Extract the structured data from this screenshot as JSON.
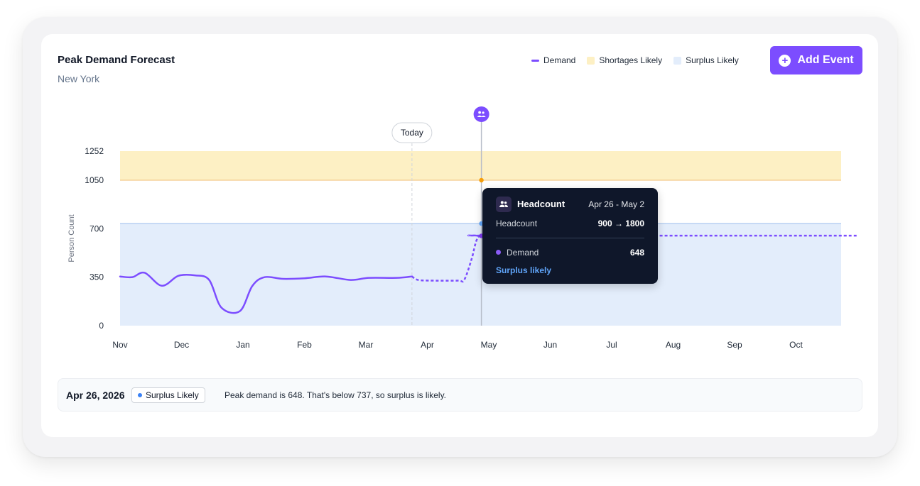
{
  "header": {
    "title": "Peak Demand Forecast",
    "subtitle": "New York"
  },
  "legend": [
    {
      "label": "Demand",
      "color": "#7c4dff",
      "kind": "line"
    },
    {
      "label": "Shortages Likely",
      "color": "#fdf0c4",
      "kind": "box"
    },
    {
      "label": "Surplus Likely",
      "color": "#e3edfb",
      "kind": "box"
    }
  ],
  "actions": {
    "add_event_label": "Add Event",
    "add_event_icon": "plus-circle-icon"
  },
  "chart_data": {
    "type": "line",
    "ylabel": "Person Count",
    "y_ticks": [
      0,
      350,
      700,
      1050,
      1252
    ],
    "x_ticks": [
      "Nov",
      "Dec",
      "Jan",
      "Feb",
      "Mar",
      "Apr",
      "May",
      "Jun",
      "Jul",
      "Aug",
      "Sep",
      "Oct"
    ],
    "today_label": "Today",
    "bands": [
      {
        "name": "Shortages Likely",
        "from": 1050,
        "to": 1252,
        "color": "#fdf0c4"
      },
      {
        "name": "Surplus Likely",
        "from": 0,
        "to": 737,
        "color": "#e3edfb"
      }
    ],
    "series": [
      {
        "name": "Demand",
        "color": "#7c4dff",
        "actual": [
          [
            0.0,
            355
          ],
          [
            0.2,
            350
          ],
          [
            0.4,
            382
          ],
          [
            0.68,
            288
          ],
          [
            0.95,
            360
          ],
          [
            1.22,
            363
          ],
          [
            1.45,
            330
          ],
          [
            1.65,
            130
          ],
          [
            1.95,
            105
          ],
          [
            2.15,
            285
          ],
          [
            2.35,
            350
          ],
          [
            2.65,
            338
          ],
          [
            3.0,
            342
          ],
          [
            3.35,
            355
          ],
          [
            3.75,
            330
          ],
          [
            4.05,
            345
          ],
          [
            4.5,
            345
          ],
          [
            4.75,
            355
          ]
        ],
        "forecast": [
          [
            4.75,
            355
          ],
          [
            4.85,
            330
          ],
          [
            5.1,
            325
          ],
          [
            5.5,
            325
          ],
          [
            5.6,
            330
          ],
          [
            5.72,
            480
          ],
          [
            5.8,
            615
          ],
          [
            5.88,
            648
          ],
          [
            6.2,
            650
          ],
          [
            12.0,
            650
          ]
        ]
      }
    ],
    "today_x": 4.75,
    "event_x": 5.88,
    "event_markers": [
      1050,
      737,
      648
    ]
  },
  "tooltip": {
    "title": "Headcount",
    "icon": "users-icon",
    "date_range": "Apr 26 - May 2",
    "headcount_label": "Headcount",
    "headcount_value": "900 → 1800",
    "demand_label": "Demand",
    "demand_value": "648",
    "status": "Surplus likely"
  },
  "footer": {
    "date": "Apr 26, 2026",
    "badge": "Surplus Likely",
    "message": "Peak demand is 648. That's below 737, so surplus is likely."
  }
}
